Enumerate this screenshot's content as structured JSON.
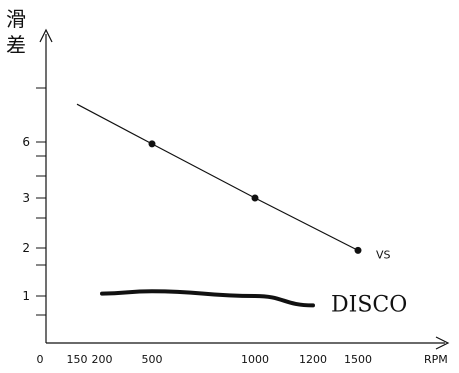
{
  "chart_data": {
    "type": "line",
    "ylabel": "滑差",
    "xlabel": "RPM",
    "x_ticks": [
      "0",
      "150",
      "200",
      "500",
      "1000",
      "1200",
      "1500"
    ],
    "y_ticks": [
      "1",
      "2",
      "3",
      "6"
    ],
    "series": [
      {
        "name": "VS",
        "x": [
          150,
          500,
          1000,
          1500
        ],
        "y": [
          6.7,
          5.9,
          3.0,
          1.95
        ],
        "markers_at": [
          500,
          1000,
          1500
        ]
      },
      {
        "name": "DISCO",
        "x": [
          200,
          500,
          1000,
          1200
        ],
        "y": [
          1.05,
          1.1,
          1.0,
          0.8
        ]
      }
    ]
  }
}
